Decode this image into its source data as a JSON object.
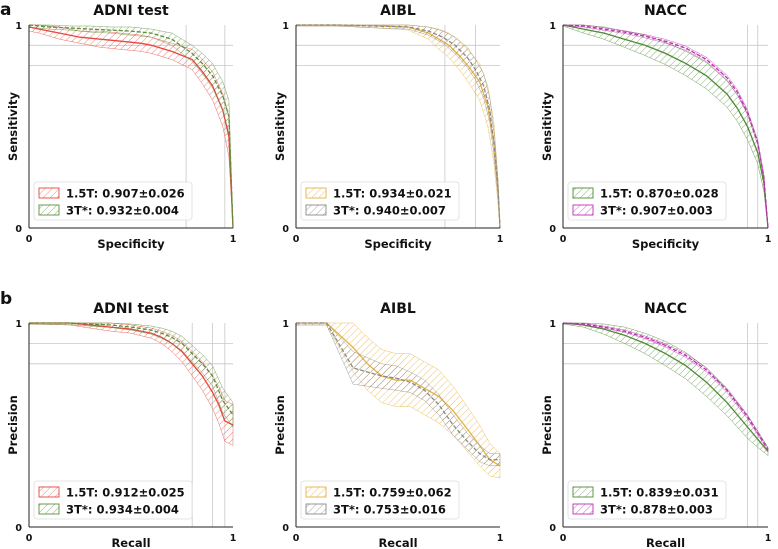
{
  "panel_labels": {
    "a": "a",
    "b": "b"
  },
  "chart_data": [
    {
      "type": "line",
      "panel": "a",
      "title": "ADNI test",
      "xlabel": "Specificity",
      "ylabel": "Sensitivity",
      "xlim": [
        0,
        1
      ],
      "ylim": [
        0,
        1
      ],
      "xticks": [
        "0",
        "1"
      ],
      "yticks": [
        "0",
        "1"
      ],
      "vgrid": [
        0.77,
        0.96
      ],
      "hgrid": [
        0.9,
        0.8
      ],
      "series": [
        {
          "name": "1.5T",
          "legend": "1.5T: 0.907±0.026",
          "color": "#e8463c",
          "hatch": "#e8463c",
          "x": [
            0,
            0.05,
            0.15,
            0.25,
            0.35,
            0.45,
            0.55,
            0.6,
            0.7,
            0.8,
            0.85,
            0.9,
            0.95,
            0.98,
            1
          ],
          "y": [
            0.99,
            0.98,
            0.96,
            0.94,
            0.93,
            0.92,
            0.91,
            0.9,
            0.87,
            0.83,
            0.77,
            0.7,
            0.58,
            0.45,
            0
          ],
          "band": [
            0.02,
            0.02,
            0.03,
            0.03,
            0.04,
            0.04,
            0.04,
            0.04,
            0.04,
            0.05,
            0.06,
            0.07,
            0.08,
            0.1,
            0.02
          ]
        },
        {
          "name": "3T*",
          "legend": "3T*: 0.932±0.004",
          "color": "#5d8f3a",
          "hatch": "#5d8f3a",
          "x": [
            0,
            0.1,
            0.2,
            0.3,
            0.4,
            0.5,
            0.6,
            0.7,
            0.8,
            0.85,
            0.9,
            0.95,
            0.98,
            1
          ],
          "y": [
            1.0,
            0.99,
            0.985,
            0.98,
            0.975,
            0.97,
            0.96,
            0.93,
            0.86,
            0.81,
            0.75,
            0.65,
            0.55,
            0
          ],
          "band": [
            0.01,
            0.01,
            0.01,
            0.015,
            0.015,
            0.02,
            0.02,
            0.03,
            0.04,
            0.05,
            0.06,
            0.07,
            0.08,
            0.02
          ]
        }
      ]
    },
    {
      "type": "line",
      "panel": "a",
      "title": "AIBL",
      "xlabel": "Specificity",
      "ylabel": "Sensitivity",
      "xlim": [
        0,
        1
      ],
      "ylim": [
        0,
        1
      ],
      "xticks": [
        "0",
        "1"
      ],
      "yticks": [
        "0",
        "1"
      ],
      "vgrid": [
        0.73,
        0.88
      ],
      "hgrid": [
        0.9,
        0.8
      ],
      "series": [
        {
          "name": "1.5T",
          "legend": "1.5T: 0.934±0.021",
          "color": "#e8b33e",
          "hatch": "#e3a52c",
          "x": [
            0,
            0.2,
            0.4,
            0.55,
            0.65,
            0.7,
            0.75,
            0.8,
            0.85,
            0.9,
            0.94,
            0.97,
            0.99,
            1
          ],
          "y": [
            1.0,
            1.0,
            0.995,
            0.99,
            0.96,
            0.93,
            0.9,
            0.85,
            0.79,
            0.72,
            0.6,
            0.42,
            0.18,
            0
          ],
          "band": [
            0.005,
            0.005,
            0.01,
            0.015,
            0.03,
            0.05,
            0.06,
            0.07,
            0.08,
            0.09,
            0.1,
            0.1,
            0.06,
            0.01
          ]
        },
        {
          "name": "3T*",
          "legend": "3T*: 0.940±0.007",
          "color": "#8a8a8a",
          "hatch": "#7a7a7a",
          "x": [
            0,
            0.2,
            0.4,
            0.55,
            0.65,
            0.72,
            0.78,
            0.84,
            0.88,
            0.92,
            0.95,
            0.97,
            0.99,
            1
          ],
          "y": [
            1.0,
            1.0,
            0.995,
            0.99,
            0.97,
            0.94,
            0.9,
            0.84,
            0.78,
            0.7,
            0.58,
            0.42,
            0.2,
            0
          ],
          "band": [
            0.005,
            0.005,
            0.01,
            0.01,
            0.02,
            0.03,
            0.04,
            0.05,
            0.05,
            0.06,
            0.06,
            0.06,
            0.04,
            0.01
          ]
        }
      ]
    },
    {
      "type": "line",
      "panel": "a",
      "title": "NACC",
      "xlabel": "Specificity",
      "ylabel": "Sensitivity",
      "xlim": [
        0,
        1
      ],
      "ylim": [
        0,
        1
      ],
      "xticks": [
        "0",
        "1"
      ],
      "yticks": [
        "0",
        "1"
      ],
      "vgrid": [
        0.9,
        0.95
      ],
      "hgrid": [
        0.9,
        0.8
      ],
      "series": [
        {
          "name": "1.5T",
          "legend": "1.5T: 0.870±0.028",
          "color": "#4f8a35",
          "hatch": "#4f8a35",
          "x": [
            0,
            0.1,
            0.2,
            0.3,
            0.4,
            0.5,
            0.6,
            0.7,
            0.8,
            0.85,
            0.9,
            0.95,
            0.98,
            1
          ],
          "y": [
            1.0,
            0.98,
            0.96,
            0.93,
            0.9,
            0.86,
            0.81,
            0.75,
            0.66,
            0.59,
            0.5,
            0.37,
            0.22,
            0
          ],
          "band": [
            0.005,
            0.02,
            0.03,
            0.04,
            0.05,
            0.055,
            0.06,
            0.065,
            0.065,
            0.065,
            0.065,
            0.055,
            0.04,
            0.005
          ]
        },
        {
          "name": "3T*",
          "legend": "3T*: 0.907±0.003",
          "color": "#c12fb3",
          "hatch": "#a626a2",
          "x": [
            0,
            0.1,
            0.2,
            0.3,
            0.4,
            0.5,
            0.6,
            0.7,
            0.8,
            0.85,
            0.9,
            0.95,
            0.98,
            1
          ],
          "y": [
            1.0,
            0.995,
            0.98,
            0.965,
            0.945,
            0.92,
            0.885,
            0.83,
            0.74,
            0.67,
            0.57,
            0.42,
            0.25,
            0
          ],
          "band": [
            0.003,
            0.005,
            0.006,
            0.007,
            0.008,
            0.009,
            0.01,
            0.011,
            0.012,
            0.012,
            0.012,
            0.011,
            0.009,
            0.003
          ]
        }
      ]
    },
    {
      "type": "line",
      "panel": "b",
      "title": "ADNI test",
      "xlabel": "Recall",
      "ylabel": "Precision",
      "xlim": [
        0,
        1
      ],
      "ylim": [
        0,
        1
      ],
      "xticks": [
        "0",
        "1"
      ],
      "yticks": [
        "0",
        "1"
      ],
      "vgrid": [
        0.8,
        0.9,
        0.96
      ],
      "hgrid": [
        0.9,
        0.8
      ],
      "series": [
        {
          "name": "1.5T",
          "legend": "1.5T: 0.912±0.025",
          "color": "#e8463c",
          "hatch": "#e8463c",
          "x": [
            0,
            0.2,
            0.3,
            0.4,
            0.5,
            0.6,
            0.65,
            0.7,
            0.75,
            0.8,
            0.85,
            0.9,
            0.93,
            0.96,
            1
          ],
          "y": [
            1.0,
            1.0,
            0.99,
            0.98,
            0.97,
            0.95,
            0.93,
            0.9,
            0.86,
            0.8,
            0.74,
            0.66,
            0.6,
            0.52,
            0.5
          ],
          "band": [
            0.005,
            0.01,
            0.015,
            0.02,
            0.02,
            0.025,
            0.03,
            0.04,
            0.05,
            0.06,
            0.07,
            0.08,
            0.09,
            0.1,
            0.1
          ]
        },
        {
          "name": "3T*",
          "legend": "3T*: 0.934±0.004",
          "color": "#5d8f3a",
          "hatch": "#5d8f3a",
          "x": [
            0,
            0.2,
            0.3,
            0.4,
            0.5,
            0.6,
            0.65,
            0.7,
            0.75,
            0.8,
            0.85,
            0.9,
            0.95,
            1
          ],
          "y": [
            1.0,
            1.0,
            0.995,
            0.99,
            0.98,
            0.965,
            0.95,
            0.93,
            0.9,
            0.85,
            0.8,
            0.74,
            0.62,
            0.55
          ],
          "band": [
            0.005,
            0.008,
            0.01,
            0.012,
            0.015,
            0.02,
            0.025,
            0.03,
            0.035,
            0.04,
            0.045,
            0.05,
            0.06,
            0.06
          ]
        }
      ]
    },
    {
      "type": "line",
      "panel": "b",
      "title": "AIBL",
      "xlabel": "Recall",
      "ylabel": "Precision",
      "xlim": [
        0,
        1
      ],
      "ylim": [
        0,
        1
      ],
      "xticks": [
        "0",
        "1"
      ],
      "yticks": [
        "0",
        "1"
      ],
      "vgrid": [],
      "hgrid": [],
      "series": [
        {
          "name": "1.5T",
          "legend": "1.5T: 0.759±0.062",
          "color": "#e8b33e",
          "hatch": "#e3a52c",
          "x": [
            0,
            0.15,
            0.28,
            0.35,
            0.42,
            0.49,
            0.56,
            0.63,
            0.7,
            0.77,
            0.84,
            0.9,
            0.95,
            1
          ],
          "y": [
            1.0,
            1.0,
            0.88,
            0.8,
            0.74,
            0.72,
            0.72,
            0.68,
            0.64,
            0.57,
            0.48,
            0.4,
            0.33,
            0.3
          ],
          "band": [
            0.01,
            0.01,
            0.12,
            0.13,
            0.13,
            0.13,
            0.13,
            0.13,
            0.13,
            0.12,
            0.11,
            0.1,
            0.08,
            0.06
          ]
        },
        {
          "name": "3T*",
          "legend": "3T*: 0.753±0.016",
          "color": "#8a8a8a",
          "hatch": "#7a7a7a",
          "x": [
            0,
            0.15,
            0.28,
            0.35,
            0.42,
            0.49,
            0.56,
            0.63,
            0.7,
            0.77,
            0.84,
            0.9,
            0.95,
            1
          ],
          "y": [
            1.0,
            1.0,
            0.78,
            0.76,
            0.74,
            0.73,
            0.71,
            0.67,
            0.6,
            0.5,
            0.42,
            0.36,
            0.33,
            0.33
          ],
          "band": [
            0.01,
            0.01,
            0.08,
            0.07,
            0.06,
            0.06,
            0.05,
            0.05,
            0.05,
            0.05,
            0.04,
            0.04,
            0.03,
            0.03
          ]
        }
      ]
    },
    {
      "type": "line",
      "panel": "b",
      "title": "NACC",
      "xlabel": "Recall",
      "ylabel": "Precision",
      "xlim": [
        0,
        1
      ],
      "ylim": [
        0,
        1
      ],
      "xticks": [
        "0",
        "1"
      ],
      "yticks": [
        "0",
        "1"
      ],
      "vgrid": [
        0.9,
        0.95
      ],
      "hgrid": [
        0.9,
        0.8
      ],
      "series": [
        {
          "name": "1.5T",
          "legend": "1.5T: 0.839±0.031",
          "color": "#4f8a35",
          "hatch": "#4f8a35",
          "x": [
            0,
            0.1,
            0.2,
            0.3,
            0.4,
            0.5,
            0.6,
            0.7,
            0.8,
            0.9,
            0.95,
            1
          ],
          "y": [
            1.0,
            0.99,
            0.97,
            0.94,
            0.9,
            0.85,
            0.79,
            0.71,
            0.61,
            0.49,
            0.43,
            0.37
          ],
          "band": [
            0.005,
            0.01,
            0.025,
            0.04,
            0.05,
            0.06,
            0.065,
            0.07,
            0.065,
            0.055,
            0.04,
            0.02
          ]
        },
        {
          "name": "3T*",
          "legend": "3T*: 0.878±0.003",
          "color": "#c12fb3",
          "hatch": "#a626a2",
          "x": [
            0,
            0.1,
            0.2,
            0.3,
            0.4,
            0.5,
            0.6,
            0.7,
            0.8,
            0.9,
            0.95,
            1
          ],
          "y": [
            1.0,
            0.995,
            0.98,
            0.96,
            0.93,
            0.89,
            0.84,
            0.77,
            0.67,
            0.54,
            0.46,
            0.38
          ],
          "band": [
            0.003,
            0.004,
            0.005,
            0.006,
            0.007,
            0.008,
            0.009,
            0.01,
            0.01,
            0.01,
            0.009,
            0.007
          ]
        }
      ]
    }
  ]
}
